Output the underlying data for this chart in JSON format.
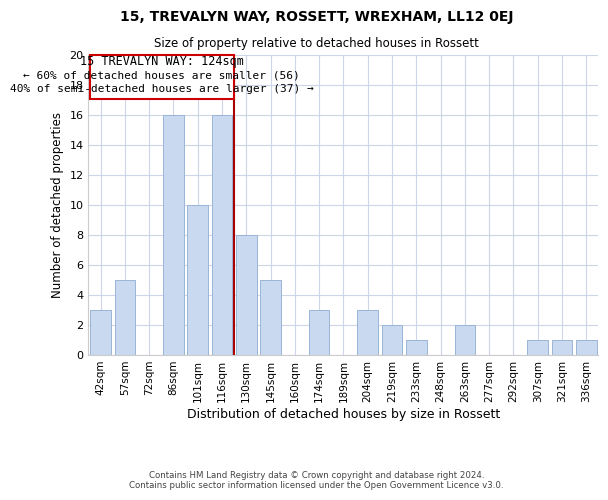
{
  "title": "15, TREVALYN WAY, ROSSETT, WREXHAM, LL12 0EJ",
  "subtitle": "Size of property relative to detached houses in Rossett",
  "xlabel": "Distribution of detached houses by size in Rossett",
  "ylabel": "Number of detached properties",
  "bar_labels": [
    "42sqm",
    "57sqm",
    "72sqm",
    "86sqm",
    "101sqm",
    "116sqm",
    "130sqm",
    "145sqm",
    "160sqm",
    "174sqm",
    "189sqm",
    "204sqm",
    "219sqm",
    "233sqm",
    "248sqm",
    "263sqm",
    "277sqm",
    "292sqm",
    "307sqm",
    "321sqm",
    "336sqm"
  ],
  "bar_values": [
    3,
    5,
    0,
    16,
    10,
    16,
    8,
    5,
    0,
    3,
    0,
    3,
    2,
    1,
    0,
    2,
    0,
    0,
    1,
    1,
    1
  ],
  "bar_color": "#c8d9f0",
  "bar_edge_color": "#9ab5d8",
  "vline_x": 5.5,
  "vline_color": "#aa0000",
  "ylim": [
    0,
    20
  ],
  "yticks": [
    0,
    2,
    4,
    6,
    8,
    10,
    12,
    14,
    16,
    18,
    20
  ],
  "annotation_title": "15 TREVALYN WAY: 124sqm",
  "annotation_line1": "← 60% of detached houses are smaller (56)",
  "annotation_line2": "40% of semi-detached houses are larger (37) →",
  "annotation_box_color": "#ffffff",
  "annotation_box_edge": "#cc0000",
  "footer_line1": "Contains HM Land Registry data © Crown copyright and database right 2024.",
  "footer_line2": "Contains public sector information licensed under the Open Government Licence v3.0.",
  "background_color": "#ffffff",
  "grid_color": "#ccd6e8"
}
